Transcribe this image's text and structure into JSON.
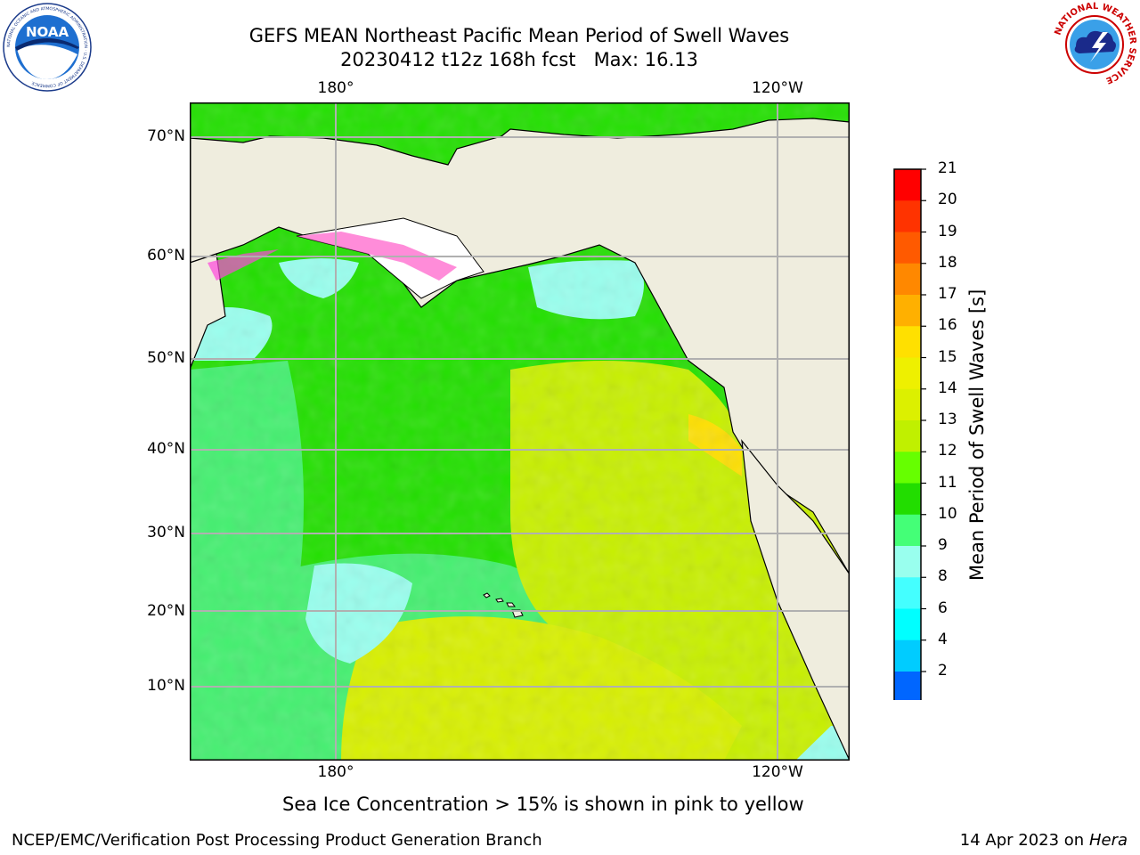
{
  "title": {
    "line1": "GEFS MEAN Northeast Pacific Mean Period of Swell Waves",
    "line2": "20230412 t12z 168h fcst   Max: 16.13"
  },
  "map": {
    "lon_labels_top": [
      "180°",
      "120°W"
    ],
    "lon_labels_bottom": [
      "180°",
      "120°W"
    ],
    "lat_labels": [
      "70°N",
      "60°N",
      "50°N",
      "40°N",
      "30°N",
      "20°N",
      "10°N"
    ]
  },
  "colorbar": {
    "label": "Mean Period of Swell Waves [s]",
    "ticks": [
      "21",
      "20",
      "19",
      "18",
      "17",
      "16",
      "15",
      "14",
      "13",
      "12",
      "11",
      "10",
      "9",
      "8",
      "6",
      "4",
      "2"
    ],
    "colors": [
      "#ff0000",
      "#ff3300",
      "#ff5a00",
      "#ff8800",
      "#ffb000",
      "#ffe000",
      "#eef000",
      "#dcf000",
      "#c0f000",
      "#66ff00",
      "#22dd00",
      "#44ff77",
      "#99ffee",
      "#44ffff",
      "#00ffff",
      "#00ccff",
      "#0066ff"
    ],
    "extend_color": "#0000ee"
  },
  "note": "Sea Ice Concentration > 15% is shown in pink to yellow",
  "footer": {
    "left": "NCEP/EMC/Verification Post Processing Product Generation Branch",
    "date": "14 Apr 2023 on ",
    "host": "Hera"
  },
  "logos": {
    "noaa": "NOAA",
    "nws_text": "NATIONAL WEATHER SERVICE",
    "noaa_ring": "NATIONAL OCEANIC AND ATMOSPHERIC ADMINISTRATION · U.S. DEPARTMENT OF COMMERCE"
  }
}
